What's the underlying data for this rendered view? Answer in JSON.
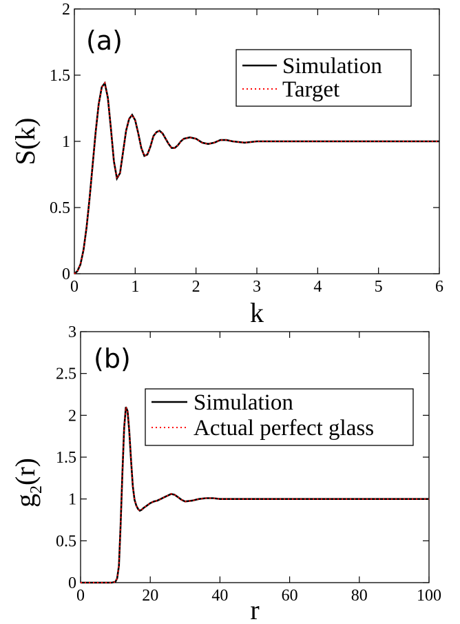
{
  "chart_data": [
    {
      "type": "line",
      "panel_label": "(a)",
      "xlabel": "k",
      "ylabel": "S(k)",
      "xlim": [
        0,
        6
      ],
      "ylim": [
        0,
        2
      ],
      "xticks": [
        "0",
        "1",
        "2",
        "3",
        "4",
        "5",
        "6"
      ],
      "yticks": [
        "0",
        "0.5",
        "1",
        "1.5",
        "2"
      ],
      "legend_placement": "top-right",
      "series": [
        {
          "name": "Simulation",
          "color": "#000000",
          "style": "solid",
          "x": [
            0,
            0.05,
            0.1,
            0.15,
            0.2,
            0.25,
            0.3,
            0.35,
            0.4,
            0.45,
            0.5,
            0.55,
            0.6,
            0.65,
            0.7,
            0.75,
            0.8,
            0.85,
            0.9,
            0.95,
            1.0,
            1.05,
            1.1,
            1.15,
            1.2,
            1.25,
            1.3,
            1.35,
            1.4,
            1.45,
            1.5,
            1.55,
            1.6,
            1.65,
            1.7,
            1.75,
            1.8,
            1.9,
            2.0,
            2.1,
            2.2,
            2.3,
            2.4,
            2.5,
            2.6,
            2.8,
            3.0,
            3.2,
            3.5,
            4.0,
            4.5,
            5.0,
            5.5,
            6.0
          ],
          "y": [
            0,
            0.02,
            0.07,
            0.18,
            0.35,
            0.57,
            0.82,
            1.07,
            1.28,
            1.41,
            1.44,
            1.33,
            1.1,
            0.85,
            0.72,
            0.76,
            0.92,
            1.08,
            1.17,
            1.2,
            1.16,
            1.06,
            0.95,
            0.89,
            0.9,
            0.96,
            1.04,
            1.07,
            1.08,
            1.06,
            1.02,
            0.98,
            0.95,
            0.95,
            0.97,
            1.0,
            1.02,
            1.03,
            1.02,
            0.99,
            0.98,
            0.99,
            1.01,
            1.01,
            1.0,
            0.99,
            1.0,
            1.0,
            1.0,
            1.0,
            1.0,
            1.0,
            1.0,
            1.0
          ]
        },
        {
          "name": "Target",
          "color": "#ff0000",
          "style": "dotted",
          "x": [
            0,
            0.05,
            0.1,
            0.15,
            0.2,
            0.25,
            0.3,
            0.35,
            0.4,
            0.45,
            0.5,
            0.55,
            0.6,
            0.65,
            0.7,
            0.75,
            0.8,
            0.85,
            0.9,
            0.95,
            1.0,
            1.05,
            1.1,
            1.15,
            1.2,
            1.25,
            1.3,
            1.35,
            1.4,
            1.45,
            1.5,
            1.55,
            1.6,
            1.65,
            1.7,
            1.75,
            1.8,
            1.9,
            2.0,
            2.1,
            2.2,
            2.3,
            2.4,
            2.5,
            2.6,
            2.8,
            3.0,
            3.2,
            3.5,
            4.0,
            4.5,
            5.0,
            5.5,
            6.0
          ],
          "y": [
            0,
            0.02,
            0.07,
            0.18,
            0.35,
            0.57,
            0.82,
            1.07,
            1.28,
            1.41,
            1.44,
            1.33,
            1.1,
            0.85,
            0.72,
            0.76,
            0.92,
            1.08,
            1.17,
            1.2,
            1.16,
            1.06,
            0.95,
            0.89,
            0.9,
            0.96,
            1.04,
            1.07,
            1.08,
            1.06,
            1.02,
            0.98,
            0.95,
            0.95,
            0.97,
            1.0,
            1.02,
            1.03,
            1.02,
            0.99,
            0.98,
            0.99,
            1.01,
            1.01,
            1.0,
            0.99,
            1.0,
            1.0,
            1.0,
            1.0,
            1.0,
            1.0,
            1.0,
            1.0
          ]
        }
      ]
    },
    {
      "type": "line",
      "panel_label": "(b)",
      "xlabel": "r",
      "ylabel": "g",
      "ylabel_sub": "2",
      "ylabel_suffix": "(r)",
      "xlim": [
        0,
        100
      ],
      "ylim": [
        0,
        3
      ],
      "xticks": [
        "0",
        "20",
        "40",
        "60",
        "80",
        "100"
      ],
      "yticks": [
        "0",
        "0.5",
        "1",
        "1.5",
        "2",
        "2.5",
        "3"
      ],
      "legend_placement": "top-right",
      "series": [
        {
          "name": "Simulation",
          "color": "#000000",
          "style": "solid",
          "x": [
            0,
            5,
            9,
            10,
            10.5,
            11,
            11.5,
            12,
            12.5,
            13,
            13.5,
            14,
            14.5,
            15,
            15.5,
            16,
            16.5,
            17,
            17.5,
            18,
            19,
            20,
            21,
            22,
            23,
            24,
            25,
            26,
            27,
            28,
            29,
            30,
            32,
            34,
            36,
            38,
            40,
            45,
            50,
            60,
            70,
            80,
            90,
            100
          ],
          "y": [
            0,
            0,
            0,
            0.01,
            0.05,
            0.2,
            0.7,
            1.3,
            1.85,
            2.1,
            2.05,
            1.8,
            1.45,
            1.15,
            0.99,
            0.92,
            0.88,
            0.86,
            0.87,
            0.89,
            0.92,
            0.95,
            0.97,
            0.98,
            1.0,
            1.02,
            1.04,
            1.06,
            1.05,
            1.02,
            0.99,
            0.97,
            0.98,
            1.0,
            1.01,
            1.01,
            1.0,
            1.0,
            1.0,
            1.0,
            1.0,
            1.0,
            1.0,
            1.0
          ]
        },
        {
          "name": "Actual perfect glass",
          "color": "#ff0000",
          "style": "dotted",
          "x": [
            0,
            5,
            9,
            10,
            10.5,
            11,
            11.5,
            12,
            12.5,
            13,
            13.5,
            14,
            14.5,
            15,
            15.5,
            16,
            16.5,
            17,
            17.5,
            18,
            19,
            20,
            21,
            22,
            23,
            24,
            25,
            26,
            27,
            28,
            29,
            30,
            32,
            34,
            36,
            38,
            40,
            45,
            50,
            60,
            70,
            80,
            90,
            100
          ],
          "y": [
            0,
            0,
            0,
            0.01,
            0.05,
            0.2,
            0.7,
            1.3,
            1.85,
            2.1,
            2.05,
            1.8,
            1.45,
            1.15,
            0.99,
            0.92,
            0.88,
            0.86,
            0.87,
            0.89,
            0.92,
            0.95,
            0.97,
            0.98,
            1.0,
            1.02,
            1.04,
            1.06,
            1.05,
            1.02,
            0.99,
            0.97,
            0.98,
            1.0,
            1.01,
            1.01,
            1.0,
            1.0,
            1.0,
            1.0,
            1.0,
            1.0,
            1.0,
            1.0
          ]
        }
      ]
    }
  ]
}
